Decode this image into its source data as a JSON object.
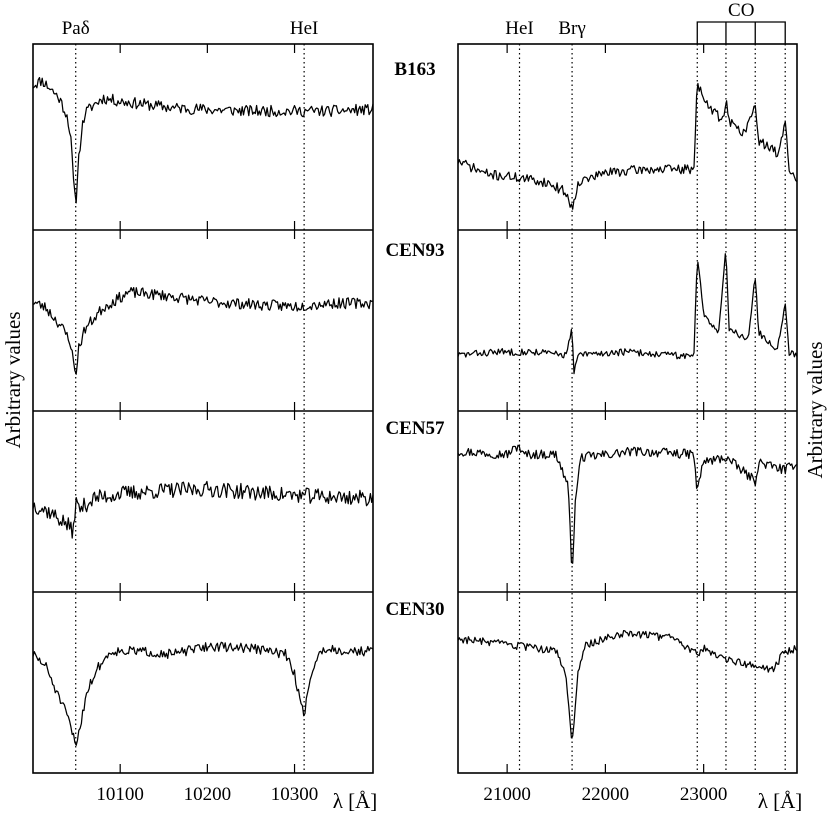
{
  "chart_data": {
    "type": "line",
    "x_axis_title": "λ [Å]",
    "y_axis_title": "Arbitrary values",
    "stars": [
      "B163",
      "CEN93",
      "CEN57",
      "CEN30"
    ],
    "panels": [
      {
        "band": "J",
        "xlim": [
          10000,
          10390
        ],
        "ticks": [
          10100,
          10200,
          10300
        ],
        "tick_labels": [
          "10100",
          "10200",
          "10300"
        ],
        "lines": [
          {
            "label": "Paδ",
            "wavelength": 10049
          },
          {
            "label": "HeI",
            "wavelength": 10311
          }
        ],
        "series": [
          {
            "star": "B163",
            "profile": [
              [
                10000,
                0.82
              ],
              [
                10010,
                0.85
              ],
              [
                10020,
                0.8
              ],
              [
                10030,
                0.74
              ],
              [
                10040,
                0.62
              ],
              [
                10044,
                0.45
              ],
              [
                10047,
                0.18
              ],
              [
                10049,
                0.08
              ],
              [
                10052,
                0.35
              ],
              [
                10056,
                0.55
              ],
              [
                10060,
                0.65
              ],
              [
                10070,
                0.7
              ],
              [
                10080,
                0.74
              ],
              [
                10100,
                0.72
              ],
              [
                10130,
                0.7
              ],
              [
                10160,
                0.68
              ],
              [
                10200,
                0.67
              ],
              [
                10250,
                0.66
              ],
              [
                10300,
                0.66
              ],
              [
                10340,
                0.66
              ],
              [
                10390,
                0.67
              ]
            ],
            "noise": 0.035,
            "seed": 11
          },
          {
            "star": "CEN93",
            "profile": [
              [
                10000,
                0.62
              ],
              [
                10015,
                0.58
              ],
              [
                10030,
                0.48
              ],
              [
                10042,
                0.38
              ],
              [
                10047,
                0.22
              ],
              [
                10049,
                0.14
              ],
              [
                10052,
                0.32
              ],
              [
                10060,
                0.45
              ],
              [
                10080,
                0.58
              ],
              [
                10110,
                0.68
              ],
              [
                10150,
                0.66
              ],
              [
                10200,
                0.62
              ],
              [
                10260,
                0.6
              ],
              [
                10300,
                0.59
              ],
              [
                10340,
                0.61
              ],
              [
                10390,
                0.61
              ]
            ],
            "noise": 0.035,
            "seed": 23
          },
          {
            "star": "CEN57",
            "profile": [
              [
                10000,
                0.48
              ],
              [
                10020,
                0.43
              ],
              [
                10040,
                0.35
              ],
              [
                10046,
                0.3
              ],
              [
                10049,
                0.5
              ],
              [
                10053,
                0.45
              ],
              [
                10070,
                0.52
              ],
              [
                10100,
                0.55
              ],
              [
                10150,
                0.57
              ],
              [
                10200,
                0.58
              ],
              [
                10250,
                0.56
              ],
              [
                10300,
                0.54
              ],
              [
                10340,
                0.53
              ],
              [
                10390,
                0.52
              ]
            ],
            "noise": 0.05,
            "seed": 37
          },
          {
            "star": "CEN30",
            "profile": [
              [
                10000,
                0.68
              ],
              [
                10015,
                0.6
              ],
              [
                10030,
                0.4
              ],
              [
                10040,
                0.28
              ],
              [
                10046,
                0.16
              ],
              [
                10049,
                0.1
              ],
              [
                10054,
                0.22
              ],
              [
                10062,
                0.45
              ],
              [
                10075,
                0.6
              ],
              [
                10090,
                0.7
              ],
              [
                10120,
                0.7
              ],
              [
                10160,
                0.68
              ],
              [
                10200,
                0.73
              ],
              [
                10250,
                0.72
              ],
              [
                10290,
                0.68
              ],
              [
                10300,
                0.55
              ],
              [
                10306,
                0.4
              ],
              [
                10311,
                0.3
              ],
              [
                10316,
                0.45
              ],
              [
                10322,
                0.62
              ],
              [
                10335,
                0.72
              ],
              [
                10360,
                0.7
              ],
              [
                10390,
                0.7
              ]
            ],
            "noise": 0.03,
            "seed": 51
          }
        ]
      },
      {
        "band": "K",
        "xlim": [
          20500,
          23950
        ],
        "ticks": [
          21000,
          22000,
          23000
        ],
        "tick_labels": [
          "21000",
          "22000",
          "23000"
        ],
        "lines": [
          {
            "label": "HeI",
            "wavelength": 21126
          },
          {
            "label": "Brγ",
            "wavelength": 21661
          }
        ],
        "band_heads": [
          22935,
          23227,
          23525,
          23830
        ],
        "band_label": "CO",
        "series": [
          {
            "star": "B163",
            "profile": [
              [
                20500,
                0.35
              ],
              [
                20800,
                0.27
              ],
              [
                21100,
                0.25
              ],
              [
                21400,
                0.22
              ],
              [
                21600,
                0.16
              ],
              [
                21661,
                0.05
              ],
              [
                21720,
                0.22
              ],
              [
                22000,
                0.28
              ],
              [
                22400,
                0.3
              ],
              [
                22800,
                0.3
              ],
              [
                22900,
                0.3
              ],
              [
                22935,
                0.85
              ],
              [
                23000,
                0.72
              ],
              [
                23200,
                0.6
              ],
              [
                23227,
                0.75
              ],
              [
                23260,
                0.6
              ],
              [
                23400,
                0.52
              ],
              [
                23525,
                0.68
              ],
              [
                23560,
                0.48
              ],
              [
                23750,
                0.4
              ],
              [
                23830,
                0.58
              ],
              [
                23870,
                0.3
              ],
              [
                23950,
                0.22
              ]
            ],
            "noise": 0.03,
            "seed": 71
          },
          {
            "star": "CEN93",
            "profile": [
              [
                20500,
                0.28
              ],
              [
                20900,
                0.3
              ],
              [
                21300,
                0.3
              ],
              [
                21600,
                0.28
              ],
              [
                21661,
                0.45
              ],
              [
                21680,
                0.15
              ],
              [
                21720,
                0.28
              ],
              [
                22200,
                0.3
              ],
              [
                22900,
                0.27
              ],
              [
                22935,
                0.92
              ],
              [
                23000,
                0.55
              ],
              [
                23150,
                0.42
              ],
              [
                23227,
                0.95
              ],
              [
                23260,
                0.45
              ],
              [
                23450,
                0.38
              ],
              [
                23525,
                0.78
              ],
              [
                23560,
                0.42
              ],
              [
                23750,
                0.32
              ],
              [
                23830,
                0.6
              ],
              [
                23870,
                0.3
              ],
              [
                23950,
                0.28
              ]
            ],
            "noise": 0.022,
            "seed": 83
          },
          {
            "star": "CEN57",
            "profile": [
              [
                20500,
                0.82
              ],
              [
                21000,
                0.8
              ],
              [
                21126,
                0.86
              ],
              [
                21150,
                0.8
              ],
              [
                21500,
                0.8
              ],
              [
                21620,
                0.6
              ],
              [
                21661,
                0.05
              ],
              [
                21700,
                0.55
              ],
              [
                21750,
                0.78
              ],
              [
                22300,
                0.82
              ],
              [
                22900,
                0.8
              ],
              [
                22935,
                0.55
              ],
              [
                22990,
                0.75
              ],
              [
                23227,
                0.78
              ],
              [
                23525,
                0.63
              ],
              [
                23560,
                0.75
              ],
              [
                23830,
                0.7
              ],
              [
                23950,
                0.75
              ]
            ],
            "noise": 0.03,
            "seed": 97
          },
          {
            "star": "CEN30",
            "profile": [
              [
                20500,
                0.78
              ],
              [
                21000,
                0.74
              ],
              [
                21500,
                0.7
              ],
              [
                21600,
                0.55
              ],
              [
                21661,
                0.1
              ],
              [
                21720,
                0.55
              ],
              [
                21800,
                0.74
              ],
              [
                22200,
                0.82
              ],
              [
                22700,
                0.78
              ],
              [
                22935,
                0.68
              ],
              [
                23000,
                0.72
              ],
              [
                23227,
                0.65
              ],
              [
                23525,
                0.6
              ],
              [
                23700,
                0.58
              ],
              [
                23830,
                0.7
              ],
              [
                23950,
                0.72
              ]
            ],
            "noise": 0.025,
            "seed": 103
          }
        ]
      }
    ]
  }
}
